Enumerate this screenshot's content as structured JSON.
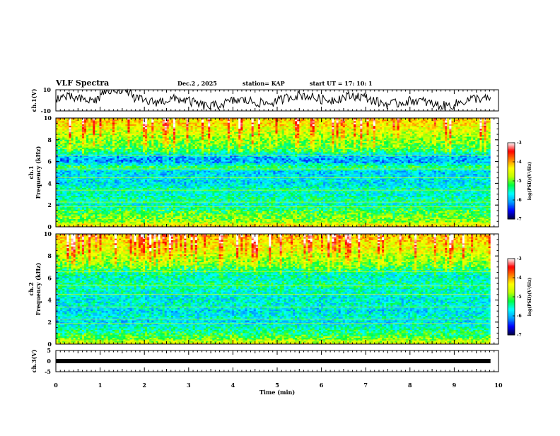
{
  "header": {
    "title": "VLF Spectra",
    "date": "Dec.2  , 2025",
    "station": "station= KAP",
    "start_ut": "start  UT  =   17: 10: 1"
  },
  "chart_data": {
    "type": "heatmap",
    "x": {
      "label": "Time  (min)",
      "range": [
        0,
        10
      ],
      "ticks": [
        "0",
        "1",
        "2",
        "3",
        "4",
        "5",
        "6",
        "7",
        "8",
        "9",
        "10"
      ],
      "data_end_min": 9.82
    },
    "panels": [
      {
        "id": "ch1_waveform",
        "type": "line",
        "ylabel": "ch.1(V)",
        "yticks": [
          "10",
          "-10"
        ],
        "ylim": [
          -10,
          10
        ],
        "series_amplitude_range": [
          -10,
          10
        ]
      },
      {
        "id": "ch1_spectrogram",
        "type": "heatmap",
        "ylabel_line1": "ch.1",
        "ylabel_line2": "Frequency  (kHz)",
        "yticks": [
          "0",
          "2",
          "4",
          "6",
          "8",
          "10"
        ],
        "ylim": [
          0,
          10
        ],
        "colorbar": {
          "label": "log(PSD)(V²/Hz)",
          "ticks": [
            "-3",
            "-4",
            "-5",
            "-6",
            "-7"
          ],
          "range": [
            -7,
            -3
          ],
          "colormap": [
            "#000040",
            "#0000ff",
            "#00a0ff",
            "#00ffff",
            "#00ff40",
            "#c0ff00",
            "#ffff00",
            "#ff8000",
            "#ff0000",
            "#ffffff"
          ]
        },
        "profile_log_psd": [
          {
            "khz": 0.0,
            "v": -4.2
          },
          {
            "khz": 0.5,
            "v": -4.9
          },
          {
            "khz": 1.0,
            "v": -5.0
          },
          {
            "khz": 1.5,
            "v": -5.2
          },
          {
            "khz": 2.0,
            "v": -5.6
          },
          {
            "khz": 2.5,
            "v": -5.4
          },
          {
            "khz": 3.0,
            "v": -5.6
          },
          {
            "khz": 3.5,
            "v": -5.5
          },
          {
            "khz": 4.0,
            "v": -5.8
          },
          {
            "khz": 4.5,
            "v": -5.7
          },
          {
            "khz": 5.0,
            "v": -5.9
          },
          {
            "khz": 5.5,
            "v": -5.2
          },
          {
            "khz": 6.0,
            "v": -6.1
          },
          {
            "khz": 6.5,
            "v": -5.9
          },
          {
            "khz": 7.0,
            "v": -5.2
          },
          {
            "khz": 7.5,
            "v": -5.0
          },
          {
            "khz": 8.0,
            "v": -4.9
          },
          {
            "khz": 8.5,
            "v": -4.7
          },
          {
            "khz": 9.0,
            "v": -4.5
          },
          {
            "khz": 9.5,
            "v": -4.3
          },
          {
            "khz": 10.0,
            "v": -4.2
          }
        ]
      },
      {
        "id": "ch2_spectrogram",
        "type": "heatmap",
        "ylabel_line1": "ch.2",
        "ylabel_line2": "Frequency  (kHz)",
        "yticks": [
          "0",
          "2",
          "4",
          "6",
          "8",
          "10"
        ],
        "ylim": [
          0,
          10
        ],
        "colorbar": {
          "label": "log(PSD)(V²/Hz)",
          "ticks": [
            "-3",
            "-4",
            "-5",
            "-6",
            "-7"
          ],
          "range": [
            -7,
            -3
          ]
        },
        "profile_log_psd": [
          {
            "khz": 0.0,
            "v": -4.5
          },
          {
            "khz": 0.5,
            "v": -5.0
          },
          {
            "khz": 1.0,
            "v": -5.3
          },
          {
            "khz": 1.5,
            "v": -5.5
          },
          {
            "khz": 2.0,
            "v": -5.8
          },
          {
            "khz": 2.5,
            "v": -5.6
          },
          {
            "khz": 3.0,
            "v": -5.8
          },
          {
            "khz": 3.5,
            "v": -5.6
          },
          {
            "khz": 4.0,
            "v": -5.7
          },
          {
            "khz": 4.5,
            "v": -5.6
          },
          {
            "khz": 5.0,
            "v": -5.5
          },
          {
            "khz": 5.5,
            "v": -5.4
          },
          {
            "khz": 6.0,
            "v": -5.6
          },
          {
            "khz": 6.5,
            "v": -5.5
          },
          {
            "khz": 7.0,
            "v": -5.1
          },
          {
            "khz": 7.5,
            "v": -4.9
          },
          {
            "khz": 8.0,
            "v": -4.7
          },
          {
            "khz": 8.5,
            "v": -4.5
          },
          {
            "khz": 9.0,
            "v": -4.4
          },
          {
            "khz": 9.5,
            "v": -4.2
          },
          {
            "khz": 10.0,
            "v": -4.1
          }
        ]
      },
      {
        "id": "ch3_waveform",
        "type": "line",
        "ylabel": "ch.3(V)",
        "yticks": [
          "5",
          "0",
          "-5"
        ],
        "ylim": [
          -5,
          5
        ],
        "series_level_v": 0
      }
    ]
  }
}
